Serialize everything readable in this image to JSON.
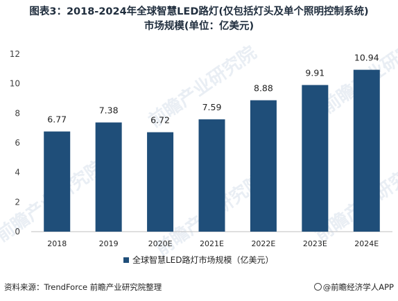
{
  "title_line1": "图表3：2018-2024年全球智慧LED路灯(仅包括灯头及单个照明控制系统)",
  "title_line2": "市场规模(单位：亿美元)",
  "source": "资料来源：TrendForce 前瞻产业研究院整理",
  "brand": "@前瞻经济学人APP",
  "watermark": "前瞻产业研究院",
  "colors": {
    "bar": "#1f4e79",
    "axis": "#bfbfbf",
    "text": "#404040"
  },
  "chart_data": {
    "type": "bar",
    "categories": [
      "2018",
      "2019",
      "2020E",
      "2021E",
      "2022E",
      "2023E",
      "2024E"
    ],
    "series": [
      {
        "name": "全球智慧LED路灯市场规模（亿美元）",
        "values": [
          6.77,
          7.38,
          6.72,
          7.59,
          8.88,
          9.91,
          10.94
        ]
      }
    ],
    "ylim": [
      0,
      12
    ],
    "yticks": [
      "0",
      "2",
      "4",
      "6",
      "8",
      "10",
      "12"
    ],
    "xlabel": "",
    "ylabel": "",
    "grid": false,
    "legend": "bottom"
  }
}
